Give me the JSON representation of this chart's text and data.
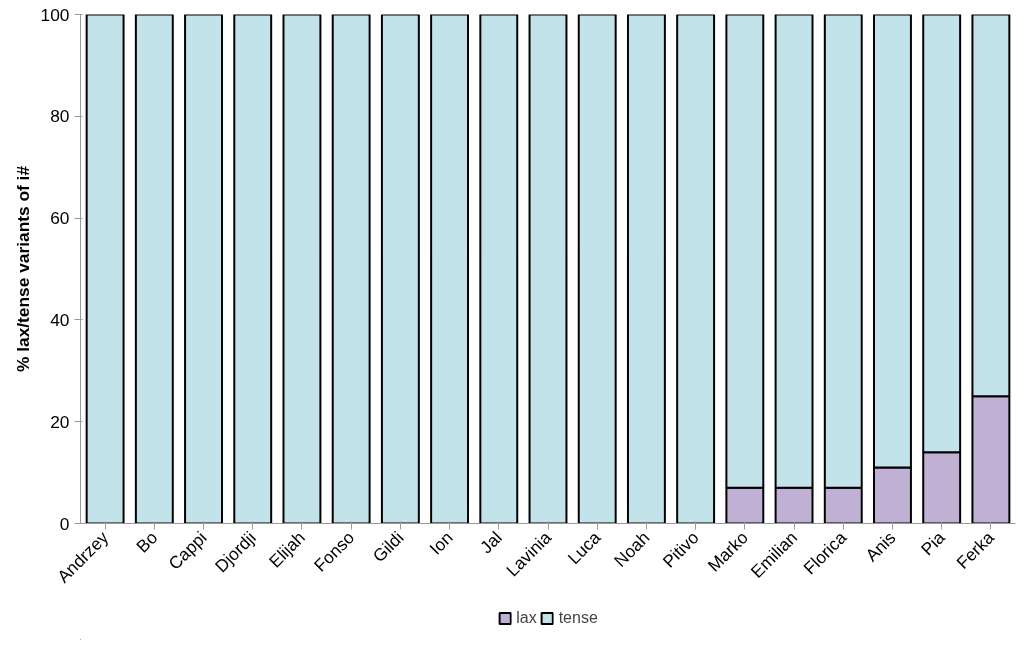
{
  "chart_data": {
    "type": "bar",
    "stacked": true,
    "ylabel": "% lax/tense variants of i#",
    "categories": [
      "Andrzey",
      "Bo",
      "Cappi",
      "Djordji",
      "Elijah",
      "Fonso",
      "Gildi",
      "Ion",
      "Jal",
      "Lavinia",
      "Luca",
      "Noah",
      "Pitivo",
      "Marko",
      "Emilian",
      "Florica",
      "Anis",
      "Pia",
      "Ferka"
    ],
    "series": [
      {
        "name": "lax",
        "color": "#c0b1d4",
        "values": [
          0,
          0,
          0,
          0,
          0,
          0,
          0,
          0,
          0,
          0,
          0,
          0,
          0,
          7,
          7,
          7,
          11,
          14,
          25
        ]
      },
      {
        "name": "tense",
        "color": "#c3e3eb",
        "values": [
          100,
          100,
          100,
          100,
          100,
          100,
          100,
          100,
          100,
          100,
          100,
          100,
          100,
          93,
          93,
          93,
          89,
          86,
          75
        ]
      }
    ],
    "ylim": [
      0,
      100
    ],
    "yticks": [
      0,
      20,
      40,
      60,
      80,
      100
    ],
    "grid": false,
    "legend": "bottom"
  }
}
